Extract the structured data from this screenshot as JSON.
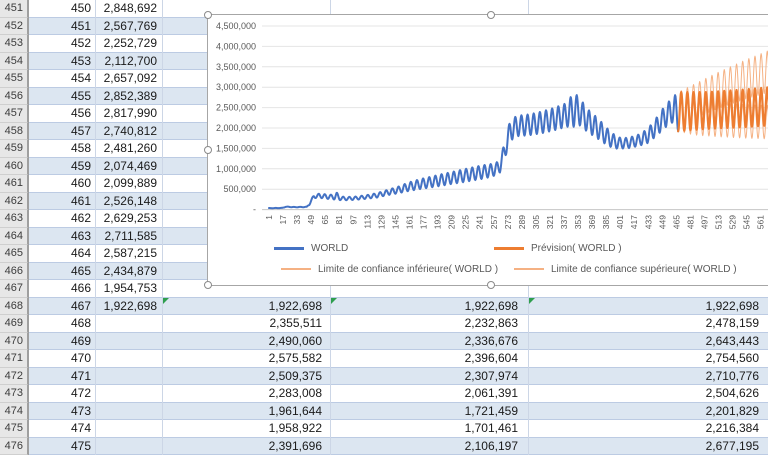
{
  "sheet": {
    "row_header_column": "row-numbers",
    "rows": [
      {
        "header": "451",
        "b": "450",
        "c": "2,848,692",
        "d": "",
        "e": "",
        "f": ""
      },
      {
        "header": "452",
        "b": "451",
        "c": "2,567,769",
        "d": "",
        "e": "",
        "f": ""
      },
      {
        "header": "453",
        "b": "452",
        "c": "2,252,729",
        "d": "",
        "e": "",
        "f": ""
      },
      {
        "header": "454",
        "b": "453",
        "c": "2,112,700",
        "d": "",
        "e": "",
        "f": ""
      },
      {
        "header": "455",
        "b": "454",
        "c": "2,657,092",
        "d": "",
        "e": "",
        "f": ""
      },
      {
        "header": "456",
        "b": "455",
        "c": "2,852,389",
        "d": "",
        "e": "",
        "f": ""
      },
      {
        "header": "457",
        "b": "456",
        "c": "2,817,990",
        "d": "",
        "e": "",
        "f": ""
      },
      {
        "header": "458",
        "b": "457",
        "c": "2,740,812",
        "d": "",
        "e": "",
        "f": ""
      },
      {
        "header": "459",
        "b": "458",
        "c": "2,481,260",
        "d": "",
        "e": "",
        "f": ""
      },
      {
        "header": "460",
        "b": "459",
        "c": "2,074,469",
        "d": "",
        "e": "",
        "f": ""
      },
      {
        "header": "461",
        "b": "460",
        "c": "2,099,889",
        "d": "",
        "e": "",
        "f": ""
      },
      {
        "header": "462",
        "b": "461",
        "c": "2,526,148",
        "d": "",
        "e": "",
        "f": ""
      },
      {
        "header": "463",
        "b": "462",
        "c": "2,629,253",
        "d": "",
        "e": "",
        "f": ""
      },
      {
        "header": "464",
        "b": "463",
        "c": "2,711,585",
        "d": "",
        "e": "",
        "f": ""
      },
      {
        "header": "465",
        "b": "464",
        "c": "2,587,215",
        "d": "",
        "e": "",
        "f": ""
      },
      {
        "header": "466",
        "b": "465",
        "c": "2,434,879",
        "d": "",
        "e": "",
        "f": ""
      },
      {
        "header": "467",
        "b": "466",
        "c": "1,954,753",
        "d": "",
        "e": "",
        "f": ""
      },
      {
        "header": "468",
        "b": "467",
        "c": "1,922,698",
        "d": "1,922,698",
        "e": "1,922,698",
        "f": "1,922,698"
      },
      {
        "header": "469",
        "b": "468",
        "c": "",
        "d": "2,355,511",
        "e": "2,232,863",
        "f": "2,478,159"
      },
      {
        "header": "470",
        "b": "469",
        "c": "",
        "d": "2,490,060",
        "e": "2,336,676",
        "f": "2,643,443"
      },
      {
        "header": "471",
        "b": "470",
        "c": "",
        "d": "2,575,582",
        "e": "2,396,604",
        "f": "2,754,560"
      },
      {
        "header": "472",
        "b": "471",
        "c": "",
        "d": "2,509,375",
        "e": "2,307,974",
        "f": "2,710,776"
      },
      {
        "header": "473",
        "b": "472",
        "c": "",
        "d": "2,283,008",
        "e": "2,061,391",
        "f": "2,504,626"
      },
      {
        "header": "474",
        "b": "473",
        "c": "",
        "d": "1,961,644",
        "e": "1,721,459",
        "f": "2,201,829"
      },
      {
        "header": "475",
        "b": "474",
        "c": "",
        "d": "1,958,922",
        "e": "1,701,461",
        "f": "2,216,384"
      },
      {
        "header": "476",
        "b": "475",
        "c": "",
        "d": "2,391,696",
        "e": "2,106,197",
        "f": "2,677,195"
      }
    ],
    "error_flags": {
      "row": "468",
      "cells": [
        "d",
        "e",
        "f"
      ]
    },
    "band_color": "#dce6f1"
  },
  "chart_data": {
    "type": "line",
    "title": "",
    "ylim": [
      0,
      4500000
    ],
    "y_ticks": [
      "-",
      "500,000",
      "1,000,000",
      "1,500,000",
      "2,000,000",
      "2,500,000",
      "3,000,000",
      "3,500,000",
      "4,000,000",
      "4,500,000"
    ],
    "x_ticks": [
      "1",
      "17",
      "33",
      "49",
      "65",
      "81",
      "97",
      "113",
      "129",
      "145",
      "161",
      "177",
      "193",
      "209",
      "225",
      "241",
      "257",
      "273",
      "289",
      "305",
      "321",
      "337",
      "353",
      "369",
      "385",
      "401",
      "417",
      "433",
      "449",
      "465",
      "481",
      "497",
      "513",
      "529",
      "545",
      "561"
    ],
    "grid": true,
    "legend_position": "bottom",
    "legend": [
      {
        "label": "WORLD",
        "color": "#4472C4",
        "thick": true
      },
      {
        "label": "Prévision( WORLD )",
        "color": "#ED7D31",
        "thick": true
      },
      {
        "label": "Limite de confiance inférieure( WORLD )",
        "color": "#F5B183",
        "thick": false
      },
      {
        "label": "Limite de confiance supérieure( WORLD )",
        "color": "#F5B183",
        "thick": false
      }
    ],
    "oscillation": {
      "period": 7,
      "phase": 0.225
    },
    "series": [
      {
        "name": "WORLD",
        "color": "#4472C4",
        "width": 2,
        "t_start": 1,
        "t_end": 467,
        "anchors": [
          [
            1,
            35000,
            3000
          ],
          [
            16,
            40000,
            4000
          ],
          [
            20,
            70000,
            5000
          ],
          [
            30,
            60000,
            5000
          ],
          [
            44,
            65000,
            6000
          ],
          [
            47,
            140000,
            25000
          ],
          [
            52,
            320000,
            40000
          ],
          [
            58,
            340000,
            50000
          ],
          [
            66,
            320000,
            55000
          ],
          [
            72,
            310000,
            55000
          ],
          [
            78,
            330000,
            90000
          ],
          [
            83,
            275000,
            45000
          ],
          [
            90,
            270000,
            40000
          ],
          [
            100,
            280000,
            40000
          ],
          [
            112,
            310000,
            45000
          ],
          [
            124,
            350000,
            55000
          ],
          [
            136,
            420000,
            65000
          ],
          [
            148,
            480000,
            80000
          ],
          [
            160,
            560000,
            105000
          ],
          [
            172,
            620000,
            120000
          ],
          [
            184,
            670000,
            130000
          ],
          [
            196,
            720000,
            140000
          ],
          [
            208,
            770000,
            145000
          ],
          [
            220,
            820000,
            155000
          ],
          [
            232,
            870000,
            160000
          ],
          [
            244,
            920000,
            165000
          ],
          [
            256,
            970000,
            155000
          ],
          [
            264,
            1050000,
            140000
          ],
          [
            270,
            1500000,
            220000
          ],
          [
            276,
            1950000,
            260000
          ],
          [
            284,
            2050000,
            250000
          ],
          [
            298,
            2080000,
            255000
          ],
          [
            312,
            2140000,
            265000
          ],
          [
            326,
            2220000,
            275000
          ],
          [
            340,
            2320000,
            290000
          ],
          [
            348,
            2450000,
            420000
          ],
          [
            354,
            2420000,
            340000
          ],
          [
            364,
            2180000,
            280000
          ],
          [
            376,
            1980000,
            250000
          ],
          [
            388,
            1750000,
            200000
          ],
          [
            398,
            1630000,
            140000
          ],
          [
            410,
            1630000,
            125000
          ],
          [
            422,
            1700000,
            140000
          ],
          [
            432,
            1800000,
            170000
          ],
          [
            442,
            2020000,
            220000
          ],
          [
            452,
            2280000,
            270000
          ],
          [
            460,
            2430000,
            300000
          ],
          [
            467,
            2400000,
            480000
          ]
        ]
      },
      {
        "name": "Limite de confiance inférieure( WORLD )",
        "color": "#F5B183",
        "width": 1,
        "t_start": 467,
        "t_end": 576,
        "anchors": [
          [
            467,
            2400000,
            480000
          ],
          [
            485,
            2250000,
            420000
          ],
          [
            510,
            2200000,
            410000
          ],
          [
            545,
            2160000,
            410000
          ],
          [
            576,
            2140000,
            410000
          ]
        ]
      },
      {
        "name": "Limite de confiance supérieure( WORLD )",
        "color": "#F5B183",
        "width": 1,
        "t_start": 467,
        "t_end": 576,
        "anchors": [
          [
            467,
            2400000,
            480000
          ],
          [
            485,
            2650000,
            420000
          ],
          [
            510,
            2900000,
            440000
          ],
          [
            545,
            3200000,
            480000
          ],
          [
            576,
            3430000,
            520000
          ]
        ]
      },
      {
        "name": "Prévision( WORLD )",
        "color": "#ED7D31",
        "width": 2.2,
        "t_start": 467,
        "t_end": 576,
        "anchors": [
          [
            467,
            2400000,
            480000
          ],
          [
            500,
            2430000,
            450000
          ],
          [
            540,
            2480000,
            460000
          ],
          [
            576,
            2540000,
            470000
          ]
        ]
      }
    ],
    "forecast_values_t467_475": [
      1922698,
      2355511,
      2490060,
      2575582,
      2509375,
      2283008,
      1961644,
      1958922,
      2391696
    ]
  }
}
